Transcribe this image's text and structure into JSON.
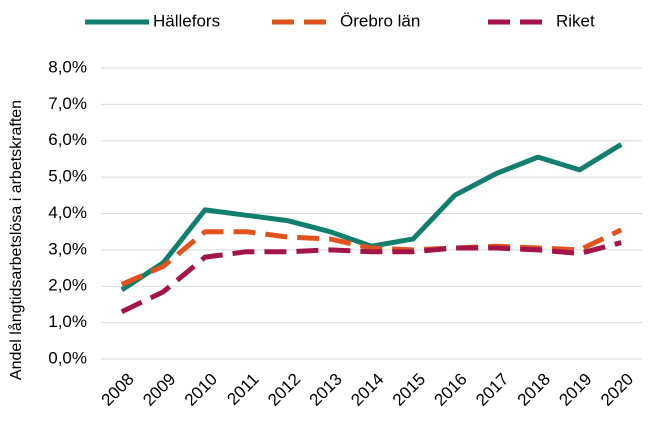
{
  "chart_data": {
    "type": "line",
    "y_label": "Andel långtidsarbetslösa i arbetskraften",
    "categories": [
      "2008",
      "2009",
      "2010",
      "2011",
      "2012",
      "2013",
      "2014",
      "2015",
      "2016",
      "2017",
      "2018",
      "2019",
      "2020"
    ],
    "series": [
      {
        "name": "Hällefors",
        "color": "#127e6c",
        "dash": false,
        "values": [
          1.9,
          2.65,
          4.1,
          3.95,
          3.8,
          3.5,
          3.1,
          3.3,
          4.5,
          5.1,
          5.55,
          5.2,
          5.9
        ]
      },
      {
        "name": "Örebro län",
        "color": "#e0531f",
        "dash": true,
        "values": [
          2.05,
          2.55,
          3.5,
          3.5,
          3.35,
          3.3,
          3.05,
          3.0,
          3.05,
          3.1,
          3.05,
          3.0,
          3.55
        ]
      },
      {
        "name": "Riket",
        "color": "#a3154a",
        "dash": true,
        "values": [
          1.3,
          1.85,
          2.8,
          2.95,
          2.95,
          3.0,
          2.95,
          2.95,
          3.05,
          3.05,
          3.0,
          2.9,
          3.2
        ]
      }
    ],
    "ylim": [
      0,
      8
    ],
    "yticks": [
      {
        "value": 0,
        "label": "0,0%"
      },
      {
        "value": 1,
        "label": "1,0%"
      },
      {
        "value": 2,
        "label": "2,0%"
      },
      {
        "value": 3,
        "label": "3,0%"
      },
      {
        "value": 4,
        "label": "4,0%"
      },
      {
        "value": 5,
        "label": "5,0%"
      },
      {
        "value": 6,
        "label": "6,0%"
      },
      {
        "value": 7,
        "label": "7,0%"
      },
      {
        "value": 8,
        "label": "8,0%"
      }
    ],
    "grid": true,
    "legend": "top"
  }
}
